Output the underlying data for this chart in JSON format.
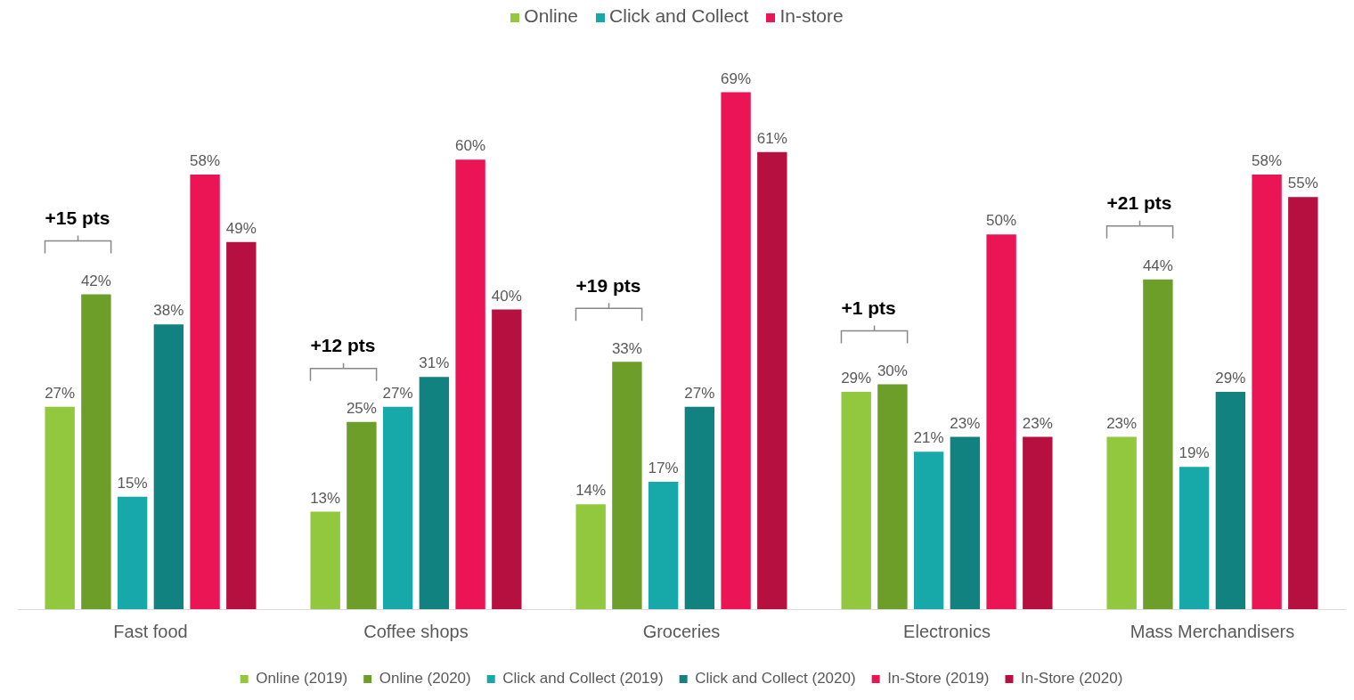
{
  "chart_data": {
    "type": "bar",
    "categories": [
      "Fast food",
      "Coffee shops",
      "Groceries",
      "Electronics",
      "Mass Merchandisers"
    ],
    "series": [
      {
        "name": "Online (2019)",
        "color": "#92c83e",
        "values": [
          27,
          13,
          14,
          29,
          23
        ],
        "value_labels": [
          "27%",
          "13%",
          "14%",
          "29%",
          "23%"
        ]
      },
      {
        "name": "Online (2020)",
        "color": "#6e9e2a",
        "values": [
          42,
          25,
          33,
          30,
          44
        ],
        "value_labels": [
          "42%",
          "25%",
          "33%",
          "30%",
          "44%"
        ]
      },
      {
        "name": "Click and Collect (2019)",
        "color": "#17a9a9",
        "values": [
          15,
          27,
          17,
          21,
          19
        ],
        "value_labels": [
          "15%",
          "27%",
          "17%",
          "21%",
          "19%"
        ]
      },
      {
        "name": "Click and Collect (2020)",
        "color": "#11827f",
        "values": [
          38,
          31,
          27,
          23,
          29
        ],
        "value_labels": [
          "38%",
          "31%",
          "27%",
          "23%",
          "29%"
        ]
      },
      {
        "name": "In-Store (2019)",
        "color": "#eb1455",
        "values": [
          58,
          60,
          69,
          50,
          58
        ],
        "value_labels": [
          "58%",
          "60%",
          "69%",
          "50%",
          "58%"
        ]
      },
      {
        "name": "In-Store (2020)",
        "color": "#b5103f",
        "values": [
          49,
          40,
          61,
          23,
          55
        ],
        "value_labels": [
          "49%",
          "40%",
          "61%",
          "23%",
          "55%"
        ]
      }
    ],
    "tick_labels": "x",
    "grid": false,
    "legend": "bottom",
    "annotations": [
      "Online",
      "Click and Collect",
      "In-store",
      "+15 pts",
      "+12 pts",
      "+19 pts",
      "+1 pts",
      "+21 pts"
    ]
  }
}
